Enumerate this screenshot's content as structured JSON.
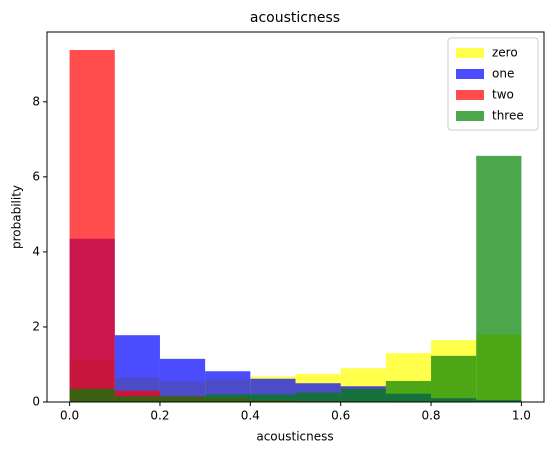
{
  "chart_data": {
    "type": "histogram",
    "title": "acousticness",
    "xlabel": "acousticness",
    "ylabel": "probability",
    "bins": [
      0,
      0.1,
      0.2,
      0.3,
      0.4,
      0.5,
      0.6,
      0.7,
      0.8,
      0.9,
      1.0
    ],
    "series": [
      {
        "name": "zero",
        "color": "#ffff00",
        "values": [
          1.12,
          0.65,
          0.55,
          0.6,
          0.68,
          0.75,
          0.9,
          1.3,
          1.65,
          1.8
        ]
      },
      {
        "name": "one",
        "color": "#0000ff",
        "values": [
          4.35,
          1.78,
          1.15,
          0.82,
          0.62,
          0.5,
          0.42,
          0.22,
          0.1,
          0.05
        ]
      },
      {
        "name": "two",
        "color": "#ff0000",
        "values": [
          9.38,
          0.3,
          0.15,
          0.1,
          0.05,
          0.03,
          0.02,
          0.0,
          0.0,
          0.0
        ]
      },
      {
        "name": "three",
        "color": "#008000",
        "values": [
          0.35,
          0.15,
          0.15,
          0.2,
          0.2,
          0.25,
          0.35,
          0.56,
          1.23,
          6.56
        ]
      }
    ],
    "opacity": 0.7,
    "xlim": [
      -0.05,
      1.05
    ],
    "xticks": [
      {
        "value": 0,
        "label": "0.0"
      },
      0.2,
      0.4,
      0.6,
      0.8,
      {
        "value": 1,
        "label": "1.0"
      }
    ],
    "ylim": [
      0,
      9.86
    ],
    "yticks": [
      0,
      2,
      4,
      6,
      8
    ],
    "legend": "upper right"
  }
}
